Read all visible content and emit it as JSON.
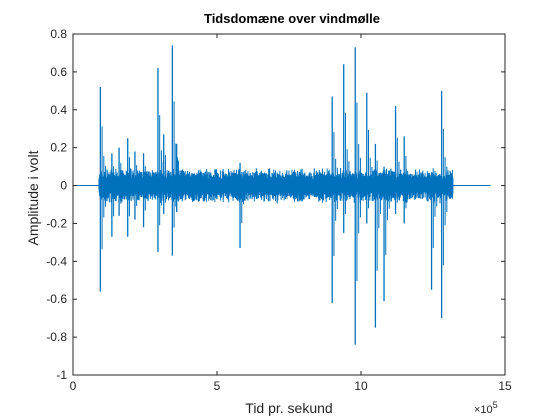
{
  "chart_data": {
    "type": "line",
    "title": "Tidsdomæne over vindmølle",
    "xlabel": "Tid pr. sekund",
    "ylabel": "Amplitude i volt",
    "x_exponent_label": "×10",
    "x_exponent_power": "5",
    "x_exponent": 5,
    "xlim": [
      0,
      15
    ],
    "ylim": [
      -1,
      0.8
    ],
    "xticks": [
      0,
      5,
      10,
      15
    ],
    "xtick_labels": [
      "0",
      "5",
      "10",
      "15"
    ],
    "yticks": [
      -1,
      -0.8,
      -0.6,
      -0.4,
      -0.2,
      0,
      0.2,
      0.4,
      0.6,
      0.8
    ],
    "ytick_labels": [
      "-1",
      "-0.8",
      "-0.6",
      "-0.4",
      "-0.2",
      "0",
      "0.2",
      "0.4",
      "0.6",
      "0.8"
    ],
    "grid": false,
    "legend": "none",
    "series": [
      {
        "color": "#0072BD",
        "signal_start": 0.9,
        "signal_end": 13.2,
        "data_end": 14.5,
        "baseline": 0,
        "noise_band": [
          -0.08,
          0.08
        ],
        "peaks": [
          {
            "x": 0.95,
            "max": 0.52,
            "min": -0.56
          },
          {
            "x": 1.35,
            "max": 0.17,
            "min": -0.27
          },
          {
            "x": 1.6,
            "max": 0.2,
            "min": -0.16
          },
          {
            "x": 1.9,
            "max": 0.25,
            "min": -0.27
          },
          {
            "x": 2.15,
            "max": 0.18,
            "min": -0.18
          },
          {
            "x": 2.45,
            "max": 0.17,
            "min": -0.22
          },
          {
            "x": 2.95,
            "max": 0.62,
            "min": -0.35
          },
          {
            "x": 3.15,
            "max": 0.27,
            "min": -0.15
          },
          {
            "x": 3.45,
            "max": 0.74,
            "min": -0.37
          },
          {
            "x": 3.6,
            "max": 0.22,
            "min": -0.14
          },
          {
            "x": 5.8,
            "max": 0.12,
            "min": -0.33
          },
          {
            "x": 9.0,
            "max": 0.47,
            "min": -0.62
          },
          {
            "x": 9.4,
            "max": 0.64,
            "min": -0.25
          },
          {
            "x": 9.8,
            "max": 0.73,
            "min": -0.84
          },
          {
            "x": 10.2,
            "max": 0.49,
            "min": -0.2
          },
          {
            "x": 10.5,
            "max": 0.22,
            "min": -0.75
          },
          {
            "x": 10.8,
            "max": 0.1,
            "min": -0.61
          },
          {
            "x": 11.2,
            "max": 0.42,
            "min": -0.15
          },
          {
            "x": 11.5,
            "max": 0.26,
            "min": -0.2
          },
          {
            "x": 12.45,
            "max": 0.07,
            "min": -0.55
          },
          {
            "x": 12.8,
            "max": 0.5,
            "min": -0.7
          }
        ]
      }
    ]
  }
}
